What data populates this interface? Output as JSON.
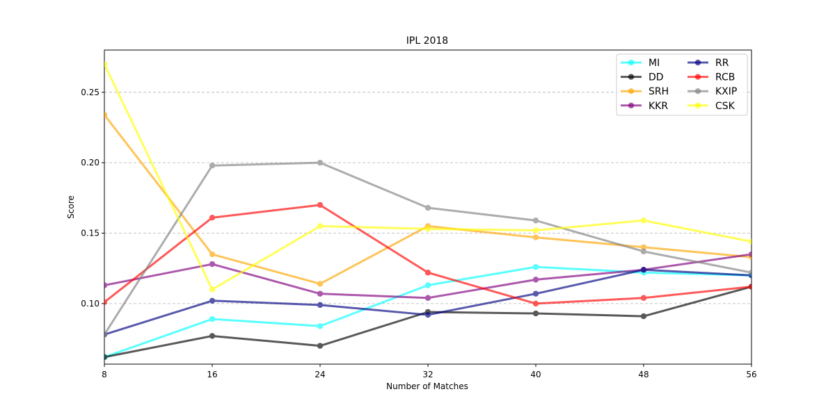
{
  "chart_data": {
    "type": "line",
    "title": "IPL 2018",
    "xlabel": "Number of Matches",
    "ylabel": "Score",
    "x": [
      8,
      16,
      24,
      32,
      40,
      48,
      56
    ],
    "xlim": [
      8,
      56
    ],
    "ylim": [
      0.057,
      0.28
    ],
    "xticks": [
      "8",
      "16",
      "24",
      "32",
      "40",
      "48",
      "56"
    ],
    "yticks": [
      {
        "value": 0.1,
        "label": "0.10"
      },
      {
        "value": 0.15,
        "label": "0.15"
      },
      {
        "value": 0.2,
        "label": "0.20"
      },
      {
        "value": 0.25,
        "label": "0.25"
      }
    ],
    "grid": "horizontal dashed",
    "legend_position": "top-right",
    "legend_columns": 2,
    "series": [
      {
        "name": "MI",
        "color": "#00ffff",
        "values": [
          0.062,
          0.089,
          0.084,
          0.113,
          0.126,
          0.122,
          0.12
        ]
      },
      {
        "name": "DD",
        "color": "#000000",
        "values": [
          0.062,
          0.077,
          0.07,
          0.094,
          0.093,
          0.091,
          0.112
        ]
      },
      {
        "name": "SRH",
        "color": "#ffa500",
        "values": [
          0.234,
          0.135,
          0.114,
          0.155,
          0.147,
          0.14,
          0.133
        ]
      },
      {
        "name": "KKR",
        "color": "#800080",
        "values": [
          0.113,
          0.128,
          0.107,
          0.104,
          0.117,
          0.124,
          0.135
        ]
      },
      {
        "name": "RR",
        "color": "#000080",
        "values": [
          0.078,
          0.102,
          0.099,
          0.092,
          0.107,
          0.124,
          0.12
        ]
      },
      {
        "name": "RCB",
        "color": "#ff0000",
        "values": [
          0.101,
          0.161,
          0.17,
          0.122,
          0.1,
          0.104,
          0.112
        ]
      },
      {
        "name": "KXIP",
        "color": "#808080",
        "values": [
          0.078,
          0.198,
          0.2,
          0.168,
          0.159,
          0.137,
          0.122
        ]
      },
      {
        "name": "CSK",
        "color": "#ffff00",
        "values": [
          0.27,
          0.11,
          0.155,
          0.153,
          0.152,
          0.159,
          0.144
        ]
      }
    ]
  }
}
